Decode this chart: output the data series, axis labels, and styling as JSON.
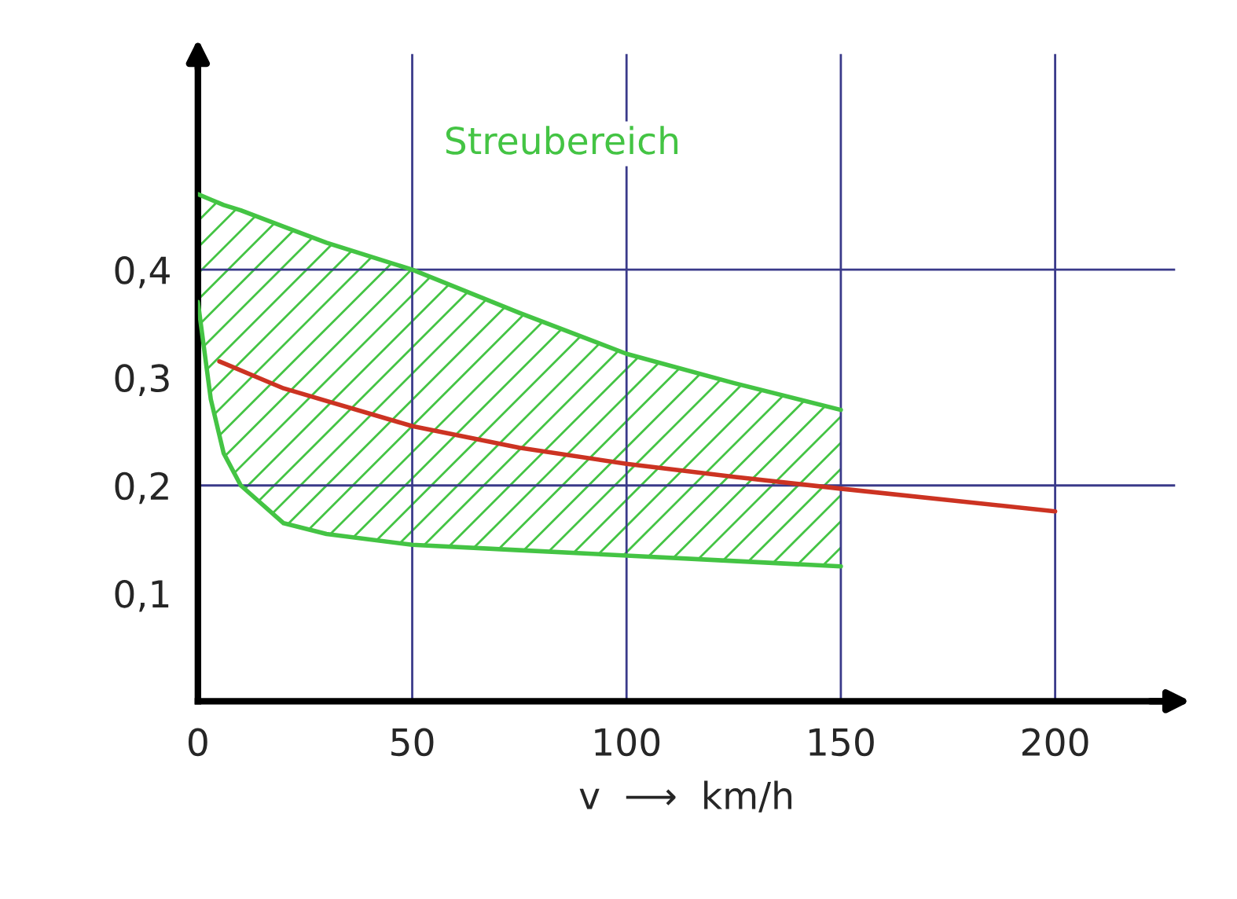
{
  "chart_data": {
    "type": "line",
    "xlabel": "v  ⟶  km/h",
    "xlim": [
      0,
      228
    ],
    "ylim": [
      0,
      0.6
    ],
    "xticks": [
      0,
      50,
      100,
      150,
      200
    ],
    "yticks": [
      {
        "value": 0.1,
        "label": "0,1"
      },
      {
        "value": 0.2,
        "label": "0,2"
      },
      {
        "value": 0.3,
        "label": "0,3"
      },
      {
        "value": 0.4,
        "label": "0,4"
      }
    ],
    "ref_lines": [
      {
        "axis": "y",
        "value": 0.2,
        "color": "#3a3a8a"
      },
      {
        "axis": "y",
        "value": 0.4,
        "color": "#3a3a8a"
      },
      {
        "axis": "x",
        "value": 50,
        "color": "#3a3a8a"
      },
      {
        "axis": "x",
        "value": 100,
        "color": "#3a3a8a"
      },
      {
        "axis": "x",
        "value": 150,
        "color": "#3a3a8a"
      },
      {
        "axis": "x",
        "value": 200,
        "color": "#3a3a8a"
      }
    ],
    "series": [
      {
        "name": "Streubereich",
        "color": "#44c444",
        "x": [
          0,
          3,
          6,
          10,
          20,
          30,
          50,
          75,
          100,
          125,
          150
        ],
        "values": [
          0.47,
          0.465,
          0.46,
          0.455,
          0.44,
          0.425,
          0.4,
          0.36,
          0.322,
          0.295,
          0.27
        ]
      },
      {
        "color": "#44c444",
        "x": [
          0,
          3,
          6,
          10,
          20,
          30,
          50,
          75,
          100,
          125,
          150
        ],
        "values": [
          0.37,
          0.28,
          0.23,
          0.2,
          0.165,
          0.155,
          0.145,
          0.14,
          0.135,
          0.13,
          0.125
        ]
      },
      {
        "color": "#cc3322",
        "x": [
          5,
          20,
          50,
          75,
          100,
          125,
          150,
          200
        ],
        "values": [
          0.315,
          0.29,
          0.255,
          0.235,
          0.22,
          0.208,
          0.197,
          0.176
        ]
      }
    ]
  }
}
